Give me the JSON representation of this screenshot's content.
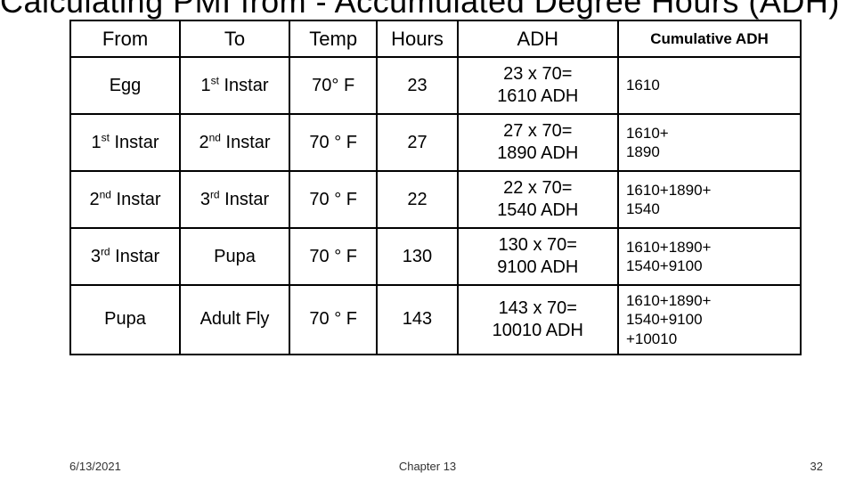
{
  "title": "Calculating PMI from - Accumulated Degree Hours (ADH)",
  "table": {
    "columns": [
      "From",
      "To",
      "Temp",
      "Hours",
      "ADH",
      "Cumulative ADH"
    ],
    "rows": [
      {
        "from": "Egg",
        "to": "1<sup>st</sup> Instar",
        "temp": "70° F",
        "hours": "23",
        "adh": "23 x 70=<br>1610 ADH",
        "cum": "1610"
      },
      {
        "from": "1<sup>st</sup> Instar",
        "to": "2<sup>nd</sup> Instar",
        "temp": "70 ° F",
        "hours": "27",
        "adh": "27 x 70=<br>1890 ADH",
        "cum": "1610+<br>1890"
      },
      {
        "from": "2<sup>nd</sup> Instar",
        "to": "3<sup>rd</sup> Instar",
        "temp": "70 ° F",
        "hours": "22",
        "adh": "22 x 70=<br>1540 ADH",
        "cum": "1610+1890+<br>1540"
      },
      {
        "from": "3<sup>rd</sup> Instar",
        "to": "Pupa",
        "temp": "70 ° F",
        "hours": "130",
        "adh": "130 x 70=<br>9100 ADH",
        "cum": "1610+1890+<br>1540+9100"
      },
      {
        "from": "Pupa",
        "to": "Adult Fly",
        "temp": "70 ° F",
        "hours": "143",
        "adh": "143 x 70=<br>10010 ADH",
        "cum": "1610+1890+<br>1540+9100<br>+10010"
      }
    ]
  },
  "footer": {
    "date": "6/13/2021",
    "chapter": "Chapter 13",
    "page": "32"
  },
  "style": {
    "background": "#ffffff",
    "text_color": "#000000",
    "border_color": "#000000",
    "title_fontsize": 36,
    "header_fontsize": 22,
    "cell_fontsize": 20,
    "cum_fontsize": 17,
    "footer_fontsize": 13,
    "col_widths_pct": [
      15,
      15,
      12,
      11,
      22,
      25
    ]
  }
}
